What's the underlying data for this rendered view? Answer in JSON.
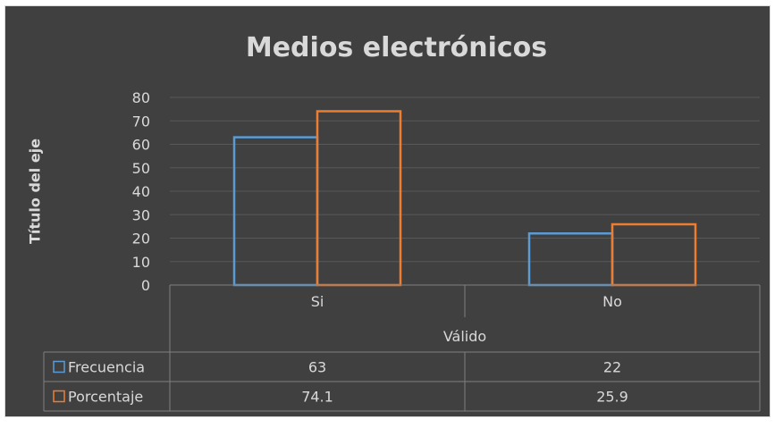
{
  "chart_data": {
    "type": "bar",
    "title": "Medios electrónicos",
    "ylabel": "Título del eje",
    "xlabel": "",
    "group_label": "Válido",
    "categories": [
      "Si",
      "No"
    ],
    "series": [
      {
        "name": "Frecuencia",
        "values": [
          63,
          22
        ],
        "value_labels": [
          "63",
          "22"
        ],
        "color": "#5b9bd5"
      },
      {
        "name": "Porcentaje",
        "values": [
          74.1,
          25.9
        ],
        "value_labels": [
          "74.1",
          "25.9"
        ],
        "color": "#ed7d31"
      }
    ],
    "ylim": [
      0,
      80
    ],
    "yticks": [
      "0",
      "10",
      "20",
      "30",
      "40",
      "50",
      "60",
      "70",
      "80"
    ],
    "grid": true,
    "legend": "data-table",
    "background": "#404040",
    "text_color": "#d9d9d9"
  }
}
